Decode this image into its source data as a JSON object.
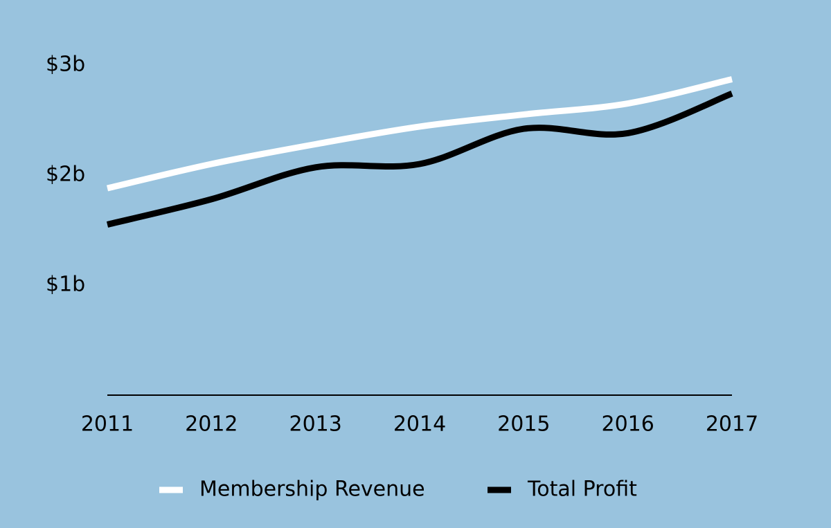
{
  "chart_data": {
    "type": "line",
    "x": [
      "2011",
      "2012",
      "2013",
      "2014",
      "2015",
      "2016",
      "2017"
    ],
    "y_ticks": [
      {
        "value": 1,
        "label": "$1b"
      },
      {
        "value": 2,
        "label": "$2b"
      },
      {
        "value": 3,
        "label": "$3b"
      }
    ],
    "ylim": [
      0,
      3.15
    ],
    "series": [
      {
        "name": "Membership Revenue",
        "color": "#ffffff",
        "values": [
          1.88,
          2.1,
          2.28,
          2.44,
          2.55,
          2.65,
          2.87
        ]
      },
      {
        "name": "Total Profit",
        "color": "#000000",
        "values": [
          1.55,
          1.78,
          2.07,
          2.1,
          2.42,
          2.38,
          2.74
        ]
      }
    ],
    "grid": false,
    "legend_position": "bottom"
  }
}
